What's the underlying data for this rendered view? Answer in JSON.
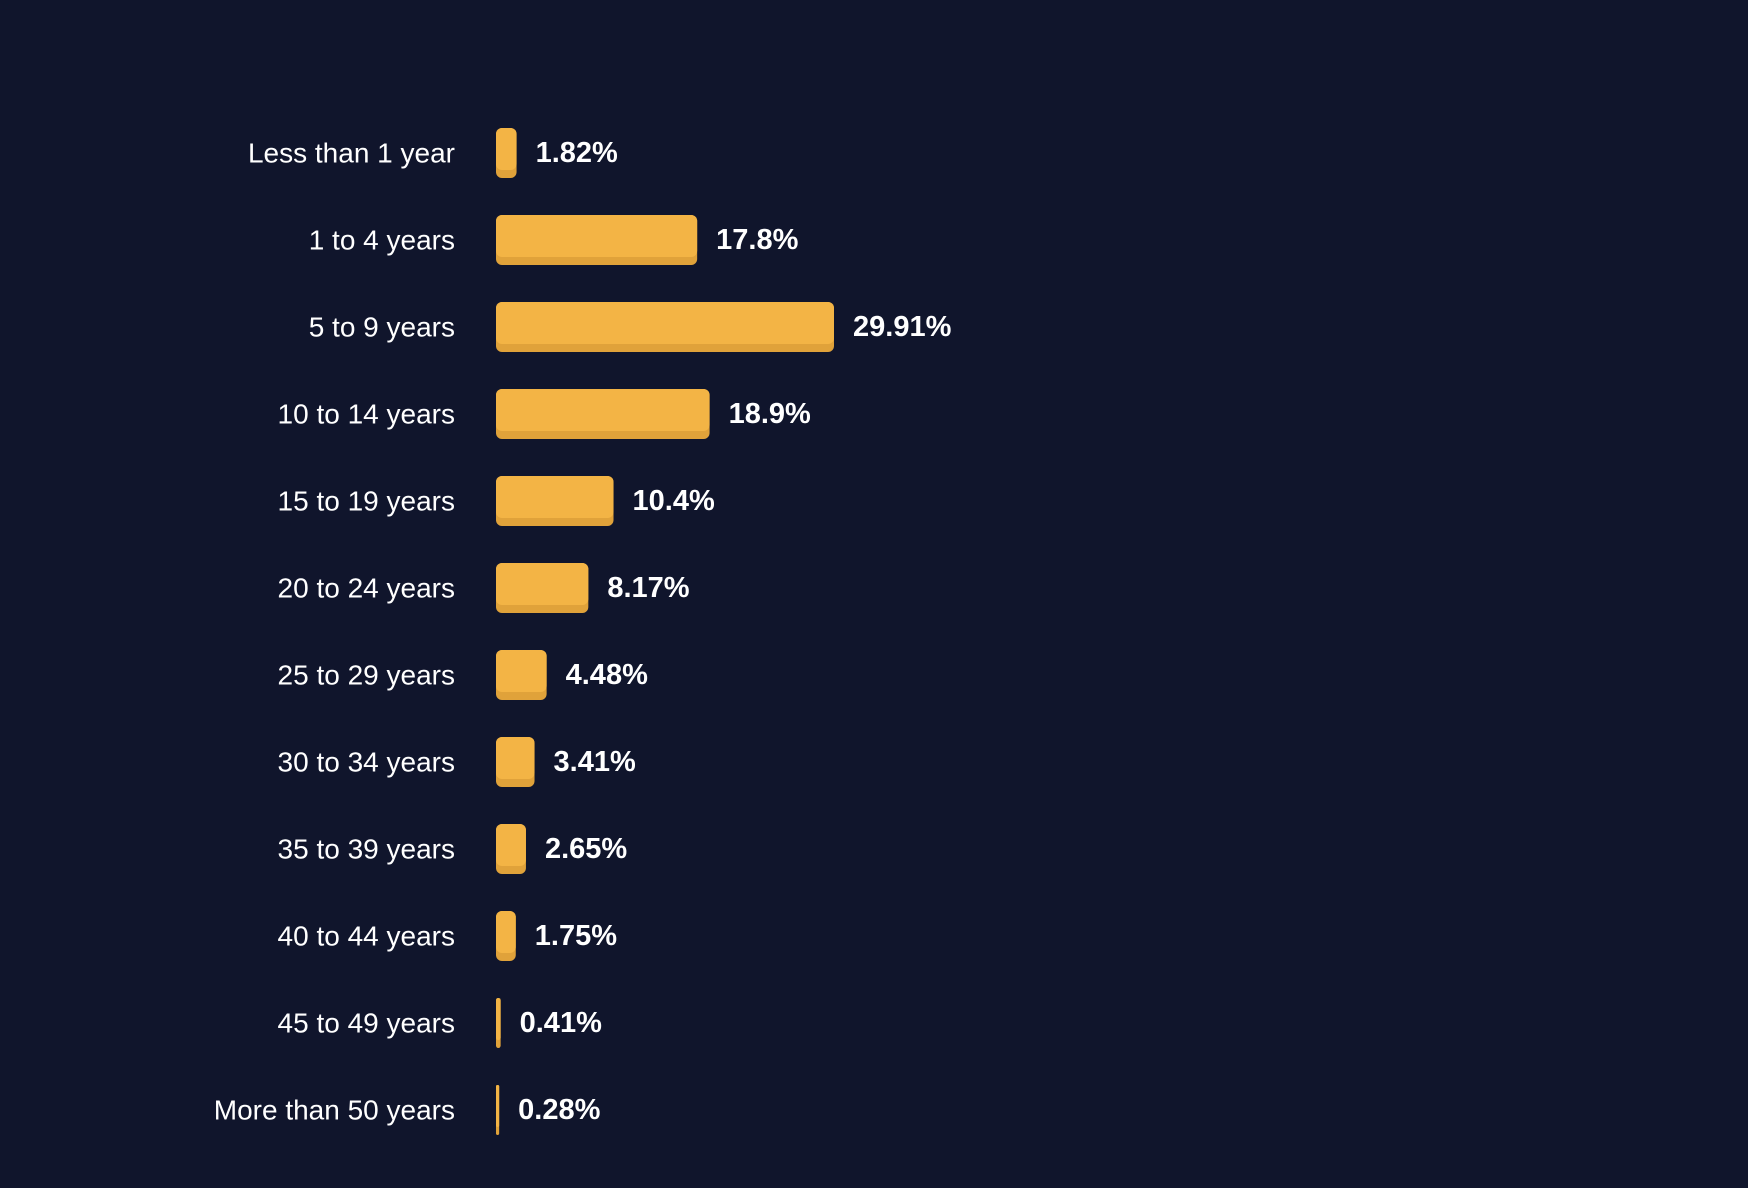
{
  "colors": {
    "background": "#10152c",
    "bar": "#f3b445",
    "bar_shadow": "#e0a23a",
    "text": "#ffffff"
  },
  "chart_data": {
    "type": "bar",
    "orientation": "horizontal",
    "categories": [
      "Less than 1 year",
      "1 to 4 years",
      "5 to 9 years",
      "10 to 14 years",
      "15 to 19 years",
      "20 to 24 years",
      "25 to 29 years",
      "30 to 34 years",
      "35 to 39 years",
      "40 to 44 years",
      "45 to 49 years",
      "More than 50 years"
    ],
    "values": [
      1.82,
      17.8,
      29.91,
      18.9,
      10.4,
      8.17,
      4.48,
      3.41,
      2.65,
      1.75,
      0.41,
      0.28
    ],
    "value_labels": [
      "1.82%",
      "17.8%",
      "29.91%",
      "18.9%",
      "10.4%",
      "8.17%",
      "4.48%",
      "3.41%",
      "2.65%",
      "1.75%",
      "0.41%",
      "0.28%"
    ],
    "title": "",
    "xlabel": "",
    "ylabel": "",
    "xlim": [
      0,
      29.91
    ],
    "grid": false,
    "legend": "none"
  }
}
